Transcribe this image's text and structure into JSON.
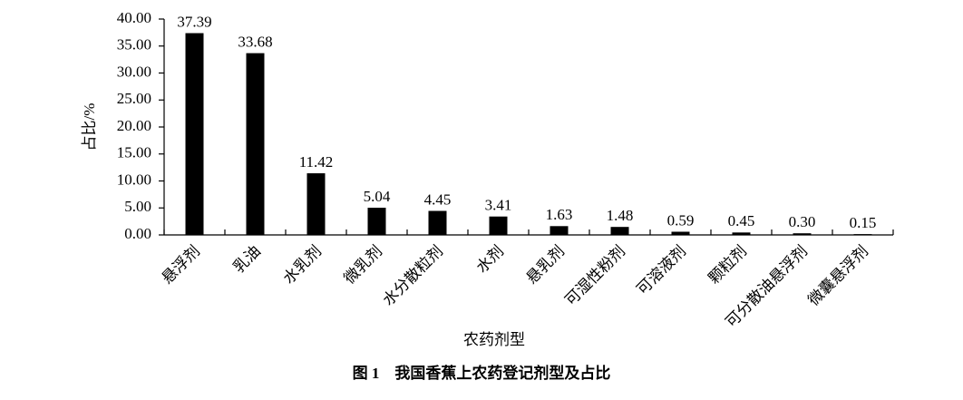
{
  "chart_data": {
    "type": "bar",
    "caption": "图 1　我国香蕉上农药登记剂型及占比",
    "x_label": "农药剂型",
    "y_label": "占比/%",
    "categories": [
      "悬浮剂",
      "乳油",
      "水乳剂",
      "微乳剂",
      "水分散粒剂",
      "水剂",
      "悬乳剂",
      "可湿性粉剂",
      "可溶液剂",
      "颗粒剂",
      "可分散油悬浮剂",
      "微囊悬浮剂"
    ],
    "values": [
      37.39,
      33.68,
      11.42,
      5.04,
      4.45,
      3.41,
      1.63,
      1.48,
      0.59,
      0.45,
      0.3,
      0.15
    ],
    "value_labels": [
      "37.39",
      "33.68",
      "11.42",
      "5.04",
      "4.45",
      "3.41",
      "1.63",
      "1.48",
      "0.59",
      "0.45",
      "0.30",
      "0.15"
    ],
    "color": "#000000",
    "ylim": [
      0,
      40
    ],
    "yticks": [
      {
        "value": 0,
        "label": "0.00"
      },
      {
        "value": 5,
        "label": "5.00"
      },
      {
        "value": 10,
        "label": "10.00"
      },
      {
        "value": 15,
        "label": "15.00"
      },
      {
        "value": 20,
        "label": "20.00"
      },
      {
        "value": 25,
        "label": "25.00"
      },
      {
        "value": 30,
        "label": "30.00"
      },
      {
        "value": 35,
        "label": "35.00"
      },
      {
        "value": 40,
        "label": "40.00"
      }
    ],
    "grid": false
  }
}
